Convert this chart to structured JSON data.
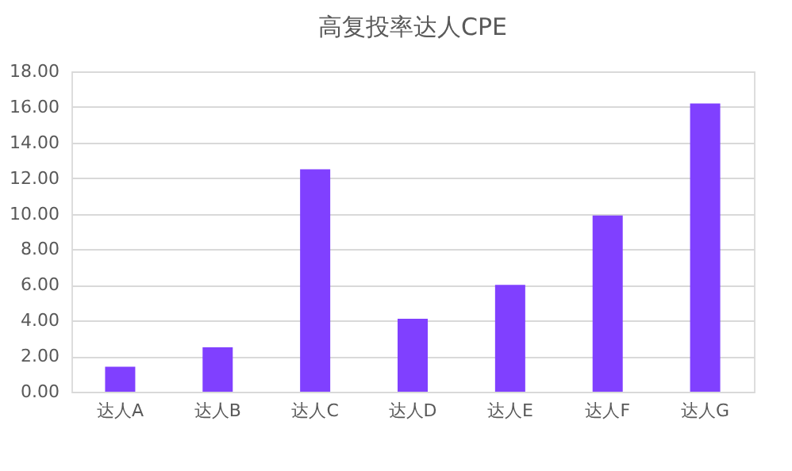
{
  "chart_data": {
    "type": "bar",
    "title": "高复投率达人CPE",
    "categories": [
      "达人A",
      "达人B",
      "达人C",
      "达人D",
      "达人E",
      "达人F",
      "达人G"
    ],
    "values": [
      1.4,
      2.5,
      12.5,
      4.1,
      6.0,
      9.9,
      16.2
    ],
    "color": "#8040ff",
    "ylim": [
      0,
      18
    ],
    "yticks": [
      {
        "value": 0,
        "label": "0.00"
      },
      {
        "value": 2,
        "label": "2.00"
      },
      {
        "value": 4,
        "label": "4.00"
      },
      {
        "value": 6,
        "label": "6.00"
      },
      {
        "value": 8,
        "label": "8.00"
      },
      {
        "value": 10,
        "label": "10.00"
      },
      {
        "value": 12,
        "label": "12.00"
      },
      {
        "value": 14,
        "label": "14.00"
      },
      {
        "value": 16,
        "label": "16.00"
      },
      {
        "value": 18,
        "label": "18.00"
      }
    ],
    "grid": "y",
    "legend": false
  }
}
